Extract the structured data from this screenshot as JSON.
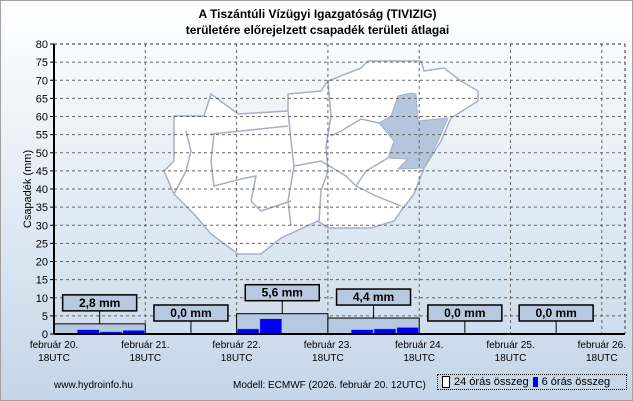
{
  "chart_data": {
    "type": "bar",
    "title": "A Tiszántúli Vízügyi Igazgatóság (TIVIZIG)",
    "subtitle": "területére előrejelzett csapadék területi átlagai",
    "ylabel": "Csapadék (mm)",
    "ylim": [
      0,
      80
    ],
    "yticks": [
      "0",
      "5",
      "10",
      "15",
      "20",
      "25",
      "30",
      "35",
      "40",
      "45",
      "50",
      "55",
      "60",
      "65",
      "70",
      "75",
      "80"
    ],
    "xticks": [
      [
        "február 20.",
        "18UTC"
      ],
      [
        "február 21.",
        "18UTC"
      ],
      [
        "február 22.",
        "18UTC"
      ],
      [
        "február 23.",
        "18UTC"
      ],
      [
        "február 24.",
        "18UTC"
      ],
      [
        "február 25.",
        "18UTC"
      ],
      [
        "február 26.",
        "18UTC"
      ]
    ],
    "grid": true,
    "series": [
      {
        "name": "24 órás összeg",
        "values": [
          2.8,
          0.0,
          5.6,
          4.4,
          0.0,
          0.0
        ],
        "labels": [
          "2,8 mm",
          "0,0 mm",
          "5,6 mm",
          "4,4 mm",
          "0,0 mm",
          "0,0 mm"
        ],
        "color": "#b7c9de"
      },
      {
        "name": "6 órás összeg",
        "values": [
          0,
          1.2,
          0.6,
          1.0,
          0,
          0,
          0,
          0,
          1.4,
          4.2,
          0,
          0,
          0,
          1.2,
          1.4,
          1.8,
          0,
          0,
          0,
          0,
          0,
          0,
          0,
          0
        ],
        "color": "#0000ee"
      }
    ],
    "legend_position": "bottom-right"
  },
  "footer": {
    "source": "www.hydroinfo.hu",
    "model": "Modell: ECMWF (2026. február 20. 12UTC)",
    "legend_24": "24 órás összeg",
    "legend_6": "6 órás összeg"
  }
}
